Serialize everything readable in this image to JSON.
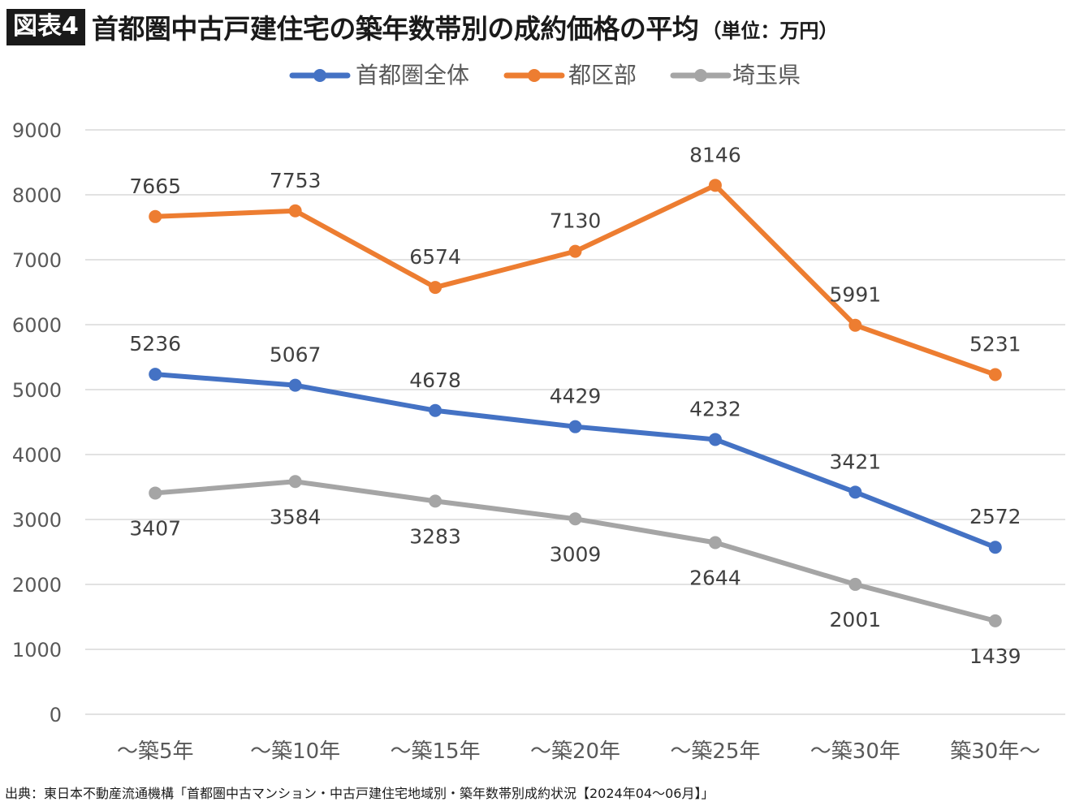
{
  "header": {
    "badge": "図表4",
    "title": "首都圏中古戸建住宅の築年数帯別の成約価格の平均",
    "unit": "（単位：万円）"
  },
  "source": "出典：東日本不動産流通機構「首都圏中古マンション・中古戸建住宅地域別・築年数帯別成約状況【2024年04～06月】」",
  "chart_data": {
    "type": "line",
    "categories": [
      "～築5年",
      "～築10年",
      "～築15年",
      "～築20年",
      "～築25年",
      "～築30年",
      "築30年～"
    ],
    "ylim": [
      0,
      9000
    ],
    "yticks": [
      0,
      1000,
      2000,
      3000,
      4000,
      5000,
      6000,
      7000,
      8000,
      9000
    ],
    "grid": true,
    "legend_position": "top-center",
    "series": [
      {
        "name": "首都圏全体",
        "color": "#4472c4",
        "values": [
          5236,
          5067,
          4678,
          4429,
          4232,
          3421,
          2572
        ],
        "label_position": "above"
      },
      {
        "name": "都区部",
        "color": "#ed7d31",
        "values": [
          7665,
          7753,
          6574,
          7130,
          8146,
          5991,
          5231
        ],
        "label_position": "above"
      },
      {
        "name": "埼玉県",
        "color": "#a5a5a5",
        "values": [
          3407,
          3584,
          3283,
          3009,
          2644,
          2001,
          1439
        ],
        "label_position": "below"
      }
    ]
  }
}
